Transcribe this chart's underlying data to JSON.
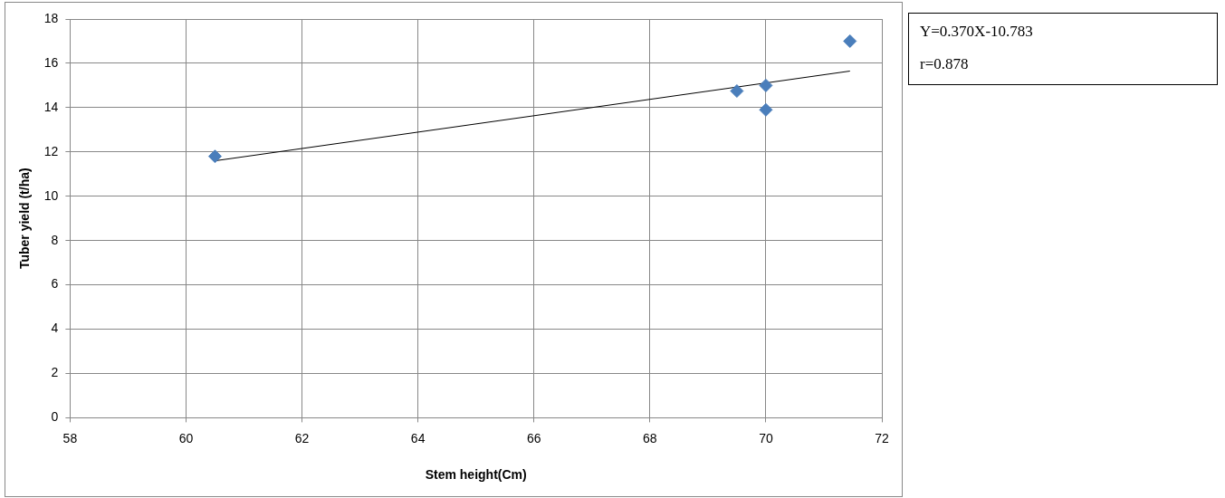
{
  "chart_data": {
    "type": "scatter",
    "xlabel": "Stem height(Cm)",
    "ylabel": "Tuber yield (t/ha)",
    "xlim": [
      58,
      72
    ],
    "xticks": [
      58,
      60,
      62,
      64,
      66,
      68,
      70,
      72
    ],
    "ylim": [
      0,
      18
    ],
    "yticks": [
      0,
      2,
      4,
      6,
      8,
      10,
      12,
      14,
      16,
      18
    ],
    "grid": true,
    "legend": false,
    "marker": "diamond",
    "series": [
      {
        "color": "#4a7ebb",
        "x": [
          60.5,
          69.5,
          70,
          70,
          71.45
        ],
        "values": [
          11.8,
          14.75,
          15,
          13.9,
          17
        ]
      },
      {
        "type": "line",
        "color": "#000000",
        "marker": "none",
        "x": [
          60.5,
          71.45
        ],
        "values": [
          11.6,
          15.65
        ]
      }
    ],
    "annotations": [
      "Y=0.370X-10.783",
      "r=0.878"
    ]
  }
}
